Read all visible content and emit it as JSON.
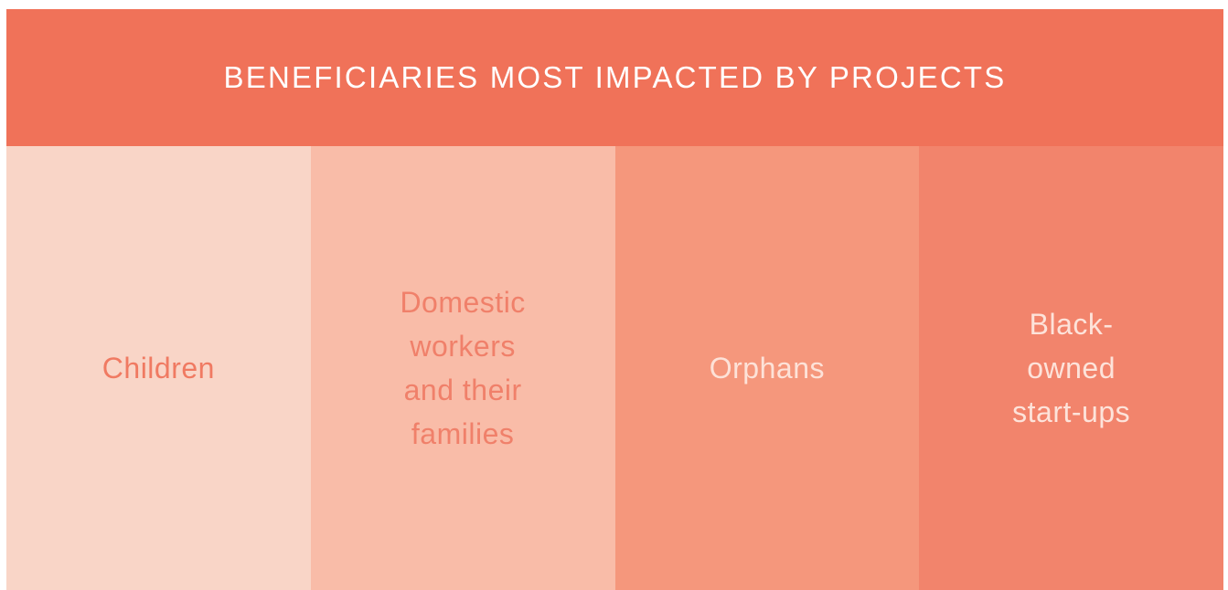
{
  "header": {
    "title": "BENEFICIARIES MOST IMPACTED BY PROJECTS"
  },
  "columns": [
    {
      "label": "Children"
    },
    {
      "label": "Domestic workers and their families"
    },
    {
      "label": "Orphans"
    },
    {
      "label": "Black-owned start-ups"
    }
  ]
}
